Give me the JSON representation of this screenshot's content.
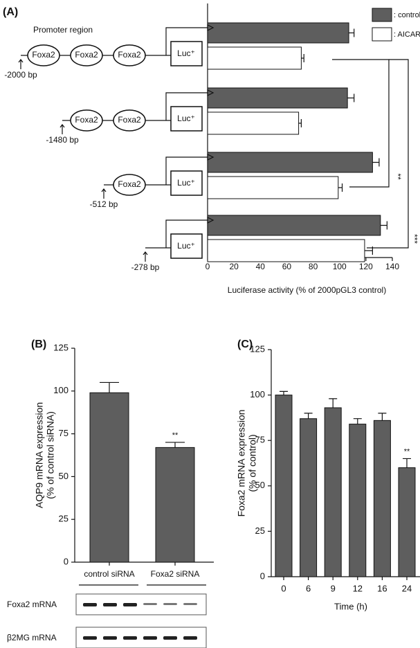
{
  "chart_data": [
    {
      "type": "hbar",
      "panel_label": "(A)",
      "categories": [
        "-2000 bp",
        "-1480 bp",
        "-512 bp",
        "-278 bp"
      ],
      "series": [
        {
          "name": ": control",
          "color": "#5e5e5e",
          "values": [
            107,
            106,
            125,
            131
          ],
          "errors": [
            4,
            5,
            5,
            5
          ]
        },
        {
          "name": ": AICAR",
          "color": "#ffffff",
          "values": [
            71,
            69,
            99,
            119
          ],
          "errors": [
            2,
            2,
            3,
            6
          ]
        }
      ],
      "xlim": [
        0,
        140
      ],
      "xticks": [
        0,
        20,
        40,
        60,
        80,
        100,
        120,
        140
      ],
      "xlabel": "Luciferase activity (% of 2000pGL3 control)",
      "annotations": [
        "**",
        "***"
      ]
    },
    {
      "type": "bar",
      "panel_label": "(B)",
      "categories": [
        "control siRNA",
        "Foxa2 siRNA"
      ],
      "values": [
        99,
        67
      ],
      "errors": [
        6,
        3
      ],
      "color": "#5e5e5e",
      "value_annotations": [
        null,
        "**"
      ],
      "ylim": [
        0,
        125
      ],
      "yticks": [
        0,
        25,
        50,
        75,
        100,
        125
      ],
      "ylabel": [
        "AQP9 mRNA expression",
        "(% of control siRNA)"
      ]
    },
    {
      "type": "bar",
      "panel_label": "(C)",
      "categories": [
        "0",
        "6",
        "9",
        "12",
        "16",
        "24"
      ],
      "values": [
        100,
        87,
        93,
        84,
        86,
        60
      ],
      "errors": [
        2,
        3,
        5,
        3,
        4,
        5
      ],
      "color": "#5e5e5e",
      "value_annotations": [
        null,
        null,
        null,
        null,
        null,
        "**"
      ],
      "ylim": [
        0,
        125
      ],
      "yticks": [
        0,
        25,
        50,
        75,
        100,
        125
      ],
      "xlabel": "Time (h)",
      "ylabel": [
        "Foxa2 mRNA expression",
        "(% of control)"
      ]
    }
  ],
  "diagram": {
    "title": "Promoter region",
    "reporter": "Luc⁺",
    "constructs": [
      [
        "Foxa2",
        "Foxa2",
        "Foxa2"
      ],
      [
        "Foxa2",
        "Foxa2"
      ],
      [
        "Foxa2"
      ],
      []
    ]
  },
  "blots": {
    "rows": [
      "Foxa2 mRNA",
      "β2MG mRNA"
    ]
  }
}
